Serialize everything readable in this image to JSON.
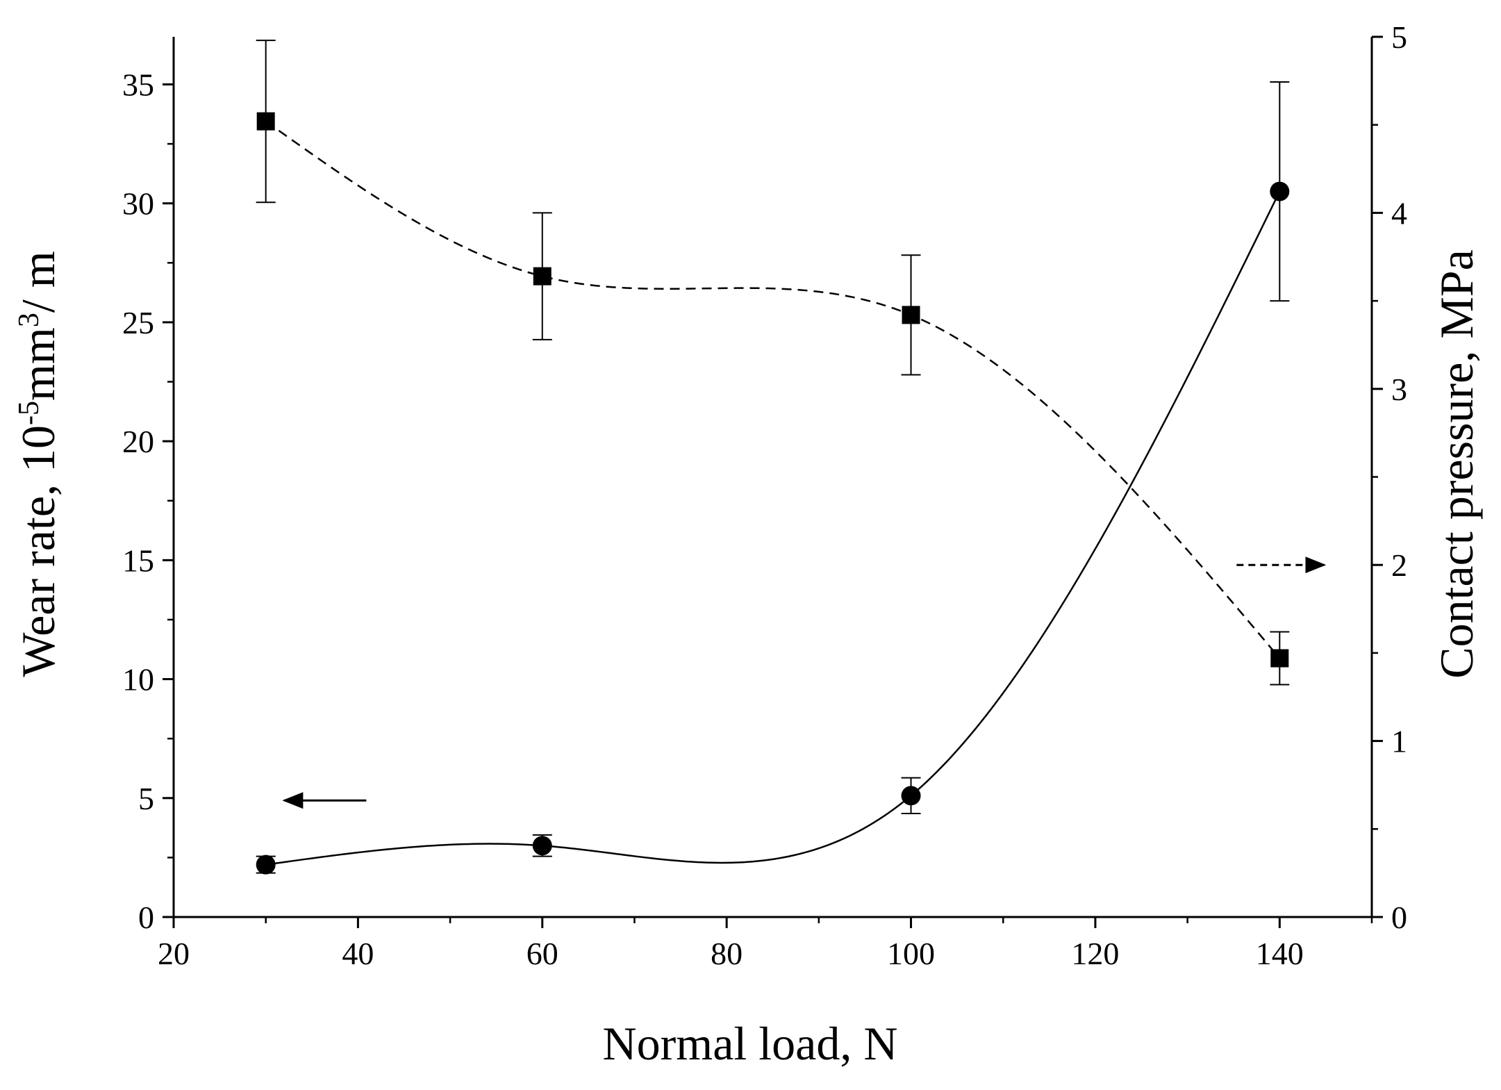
{
  "chart_data": {
    "type": "line",
    "x": [
      30,
      60,
      100,
      140
    ],
    "xlabel": "Normal load, N",
    "xlim": [
      20,
      150
    ],
    "xticks": [
      "20",
      "40",
      "60",
      "80",
      "100",
      "120",
      "140"
    ],
    "ylabel_left": {
      "prefix": "Wear rate, 10",
      "sup1": "-5",
      "mid": "mm",
      "sup2": "3",
      "suffix": "/ m"
    },
    "ylim_left": [
      0,
      37
    ],
    "yticks_left": [
      "0",
      "5",
      "10",
      "15",
      "20",
      "25",
      "30",
      "35"
    ],
    "ylabel_right": "Contact pressure, MPa",
    "ylim_right": [
      0,
      5
    ],
    "yticks_right": [
      "0",
      "1",
      "2",
      "3",
      "4",
      "5"
    ],
    "series": [
      {
        "name": "Wear rate",
        "axis": "left",
        "marker": "circle",
        "line": "solid",
        "values": [
          2.2,
          3.0,
          5.1,
          30.5
        ],
        "errors": [
          0.35,
          0.45,
          0.75,
          4.6
        ]
      },
      {
        "name": "Contact pressure",
        "axis": "right",
        "marker": "square",
        "line": "dashed",
        "values": [
          4.52,
          3.64,
          3.42,
          1.47
        ],
        "errors": [
          0.46,
          0.36,
          0.34,
          0.15
        ]
      }
    ],
    "annotations": [
      {
        "type": "arrow",
        "direction": "left",
        "series": "Wear rate",
        "at": [
          40,
          4.9
        ]
      },
      {
        "type": "arrow",
        "direction": "right",
        "series": "Contact pressure",
        "at": [
          140,
          2.0
        ]
      }
    ]
  }
}
